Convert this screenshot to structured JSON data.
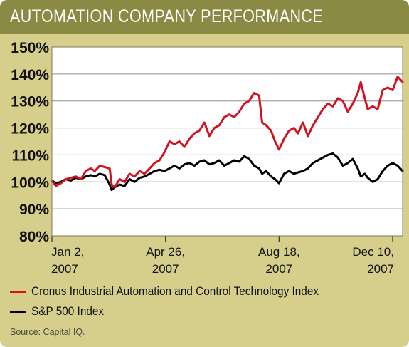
{
  "header": {
    "title": "AUTOMATION COMPANY PERFORMANCE"
  },
  "source": "Source: Capital IQ.",
  "colors": {
    "header": "#8b8a45",
    "background": "#d6cf8c",
    "plot": "#ffffff",
    "cronus": "#d0141f",
    "sp500": "#000000"
  },
  "chart_data": {
    "type": "line",
    "title": "AUTOMATION COMPANY PERFORMANCE",
    "xlabel": "",
    "ylabel": "",
    "ylim": [
      80,
      150
    ],
    "yticks": [
      80,
      90,
      100,
      110,
      120,
      130,
      140,
      150
    ],
    "ytick_labels": [
      "80%",
      "90%",
      "100%",
      "110%",
      "120%",
      "130%",
      "140%",
      "150%"
    ],
    "xlim": [
      "2007-01-02",
      "2007-12-20"
    ],
    "xticks": [
      {
        "date": "2007-01-02",
        "line1": "Jan 2,",
        "line2": "2007",
        "align": "start"
      },
      {
        "date": "2007-04-26",
        "line1": "Apr 26,",
        "line2": "2007",
        "align": "middle"
      },
      {
        "date": "2007-08-18",
        "line1": "Aug 18,",
        "line2": "2007",
        "align": "middle"
      },
      {
        "date": "2007-12-10",
        "line1": "Dec 10,",
        "line2": "2007",
        "align": "end"
      }
    ],
    "grid": "horizontal",
    "legend_position": "bottom",
    "series": [
      {
        "name": "Cronus Industrial Automation and Control Technology Index",
        "color": "#d0141f",
        "points": [
          [
            "2007-01-02",
            100.5
          ],
          [
            "2007-01-06",
            98.5
          ],
          [
            "2007-01-11",
            99.5
          ],
          [
            "2007-01-16",
            101
          ],
          [
            "2007-01-21",
            101.5
          ],
          [
            "2007-01-26",
            102
          ],
          [
            "2007-01-31",
            101
          ],
          [
            "2007-02-05",
            104
          ],
          [
            "2007-02-10",
            105
          ],
          [
            "2007-02-14",
            104
          ],
          [
            "2007-02-19",
            106
          ],
          [
            "2007-02-24",
            105.5
          ],
          [
            "2007-03-01",
            105
          ],
          [
            "2007-03-03",
            99
          ],
          [
            "2007-03-06",
            98
          ],
          [
            "2007-03-11",
            101
          ],
          [
            "2007-03-16",
            100
          ],
          [
            "2007-03-21",
            103
          ],
          [
            "2007-03-26",
            102
          ],
          [
            "2007-03-31",
            104
          ],
          [
            "2007-04-05",
            103
          ],
          [
            "2007-04-10",
            105
          ],
          [
            "2007-04-15",
            107
          ],
          [
            "2007-04-20",
            108
          ],
          [
            "2007-04-25",
            111
          ],
          [
            "2007-04-30",
            115
          ],
          [
            "2007-05-05",
            114
          ],
          [
            "2007-05-10",
            115
          ],
          [
            "2007-05-15",
            113
          ],
          [
            "2007-05-20",
            116
          ],
          [
            "2007-05-25",
            118
          ],
          [
            "2007-05-30",
            119
          ],
          [
            "2007-06-04",
            122
          ],
          [
            "2007-06-09",
            117
          ],
          [
            "2007-06-14",
            120
          ],
          [
            "2007-06-19",
            121
          ],
          [
            "2007-06-24",
            124
          ],
          [
            "2007-06-29",
            125
          ],
          [
            "2007-07-04",
            124
          ],
          [
            "2007-07-09",
            126
          ],
          [
            "2007-07-14",
            129
          ],
          [
            "2007-07-19",
            130
          ],
          [
            "2007-07-24",
            133
          ],
          [
            "2007-07-29",
            132
          ],
          [
            "2007-08-01",
            122
          ],
          [
            "2007-08-05",
            121
          ],
          [
            "2007-08-10",
            119
          ],
          [
            "2007-08-14",
            115
          ],
          [
            "2007-08-18",
            112
          ],
          [
            "2007-08-23",
            116
          ],
          [
            "2007-08-28",
            119
          ],
          [
            "2007-09-02",
            120
          ],
          [
            "2007-09-06",
            118
          ],
          [
            "2007-09-11",
            122
          ],
          [
            "2007-09-16",
            117
          ],
          [
            "2007-09-21",
            121
          ],
          [
            "2007-09-26",
            124
          ],
          [
            "2007-10-01",
            127
          ],
          [
            "2007-10-06",
            129
          ],
          [
            "2007-10-11",
            128
          ],
          [
            "2007-10-16",
            131
          ],
          [
            "2007-10-21",
            130
          ],
          [
            "2007-10-26",
            126
          ],
          [
            "2007-10-31",
            129
          ],
          [
            "2007-11-05",
            133
          ],
          [
            "2007-11-08",
            137
          ],
          [
            "2007-11-12",
            131
          ],
          [
            "2007-11-15",
            127
          ],
          [
            "2007-11-20",
            128
          ],
          [
            "2007-11-25",
            127
          ],
          [
            "2007-11-30",
            134
          ],
          [
            "2007-12-05",
            135
          ],
          [
            "2007-12-10",
            134
          ],
          [
            "2007-12-15",
            139
          ],
          [
            "2007-12-20",
            137
          ]
        ]
      },
      {
        "name": "S&P 500 Index",
        "color": "#000000",
        "points": [
          [
            "2007-01-02",
            100.5
          ],
          [
            "2007-01-06",
            99.5
          ],
          [
            "2007-01-11",
            100
          ],
          [
            "2007-01-16",
            101
          ],
          [
            "2007-01-21",
            100.5
          ],
          [
            "2007-01-26",
            101.5
          ],
          [
            "2007-01-31",
            101
          ],
          [
            "2007-02-05",
            102
          ],
          [
            "2007-02-10",
            102.5
          ],
          [
            "2007-02-14",
            102
          ],
          [
            "2007-02-19",
            103
          ],
          [
            "2007-02-24",
            102.5
          ],
          [
            "2007-03-01",
            99
          ],
          [
            "2007-03-03",
            97
          ],
          [
            "2007-03-06",
            98
          ],
          [
            "2007-03-11",
            99
          ],
          [
            "2007-03-16",
            98.5
          ],
          [
            "2007-03-21",
            101
          ],
          [
            "2007-03-26",
            100
          ],
          [
            "2007-03-31",
            101.5
          ],
          [
            "2007-04-05",
            102
          ],
          [
            "2007-04-10",
            103
          ],
          [
            "2007-04-15",
            104
          ],
          [
            "2007-04-20",
            104.5
          ],
          [
            "2007-04-25",
            104
          ],
          [
            "2007-04-30",
            105
          ],
          [
            "2007-05-05",
            106
          ],
          [
            "2007-05-10",
            105
          ],
          [
            "2007-05-15",
            106.5
          ],
          [
            "2007-05-20",
            107
          ],
          [
            "2007-05-25",
            106
          ],
          [
            "2007-05-30",
            107.5
          ],
          [
            "2007-06-04",
            108
          ],
          [
            "2007-06-09",
            106.5
          ],
          [
            "2007-06-14",
            107
          ],
          [
            "2007-06-19",
            108
          ],
          [
            "2007-06-24",
            106
          ],
          [
            "2007-06-29",
            107
          ],
          [
            "2007-07-04",
            108
          ],
          [
            "2007-07-09",
            107.5
          ],
          [
            "2007-07-14",
            109.5
          ],
          [
            "2007-07-19",
            108.5
          ],
          [
            "2007-07-24",
            106
          ],
          [
            "2007-07-29",
            105
          ],
          [
            "2007-08-01",
            103
          ],
          [
            "2007-08-05",
            104
          ],
          [
            "2007-08-10",
            102
          ],
          [
            "2007-08-14",
            101
          ],
          [
            "2007-08-18",
            99.5
          ],
          [
            "2007-08-23",
            103
          ],
          [
            "2007-08-28",
            104
          ],
          [
            "2007-09-02",
            103
          ],
          [
            "2007-09-06",
            103.5
          ],
          [
            "2007-09-11",
            104
          ],
          [
            "2007-09-16",
            105
          ],
          [
            "2007-09-21",
            107
          ],
          [
            "2007-09-26",
            108
          ],
          [
            "2007-10-01",
            109
          ],
          [
            "2007-10-06",
            110
          ],
          [
            "2007-10-11",
            110.5
          ],
          [
            "2007-10-16",
            109
          ],
          [
            "2007-10-21",
            106
          ],
          [
            "2007-10-26",
            107
          ],
          [
            "2007-10-31",
            108.5
          ],
          [
            "2007-11-05",
            105
          ],
          [
            "2007-11-08",
            102
          ],
          [
            "2007-11-12",
            103
          ],
          [
            "2007-11-15",
            101.5
          ],
          [
            "2007-11-20",
            100
          ],
          [
            "2007-11-25",
            101
          ],
          [
            "2007-11-30",
            104
          ],
          [
            "2007-12-05",
            106
          ],
          [
            "2007-12-10",
            107
          ],
          [
            "2007-12-15",
            106
          ],
          [
            "2007-12-20",
            104
          ]
        ]
      }
    ]
  }
}
